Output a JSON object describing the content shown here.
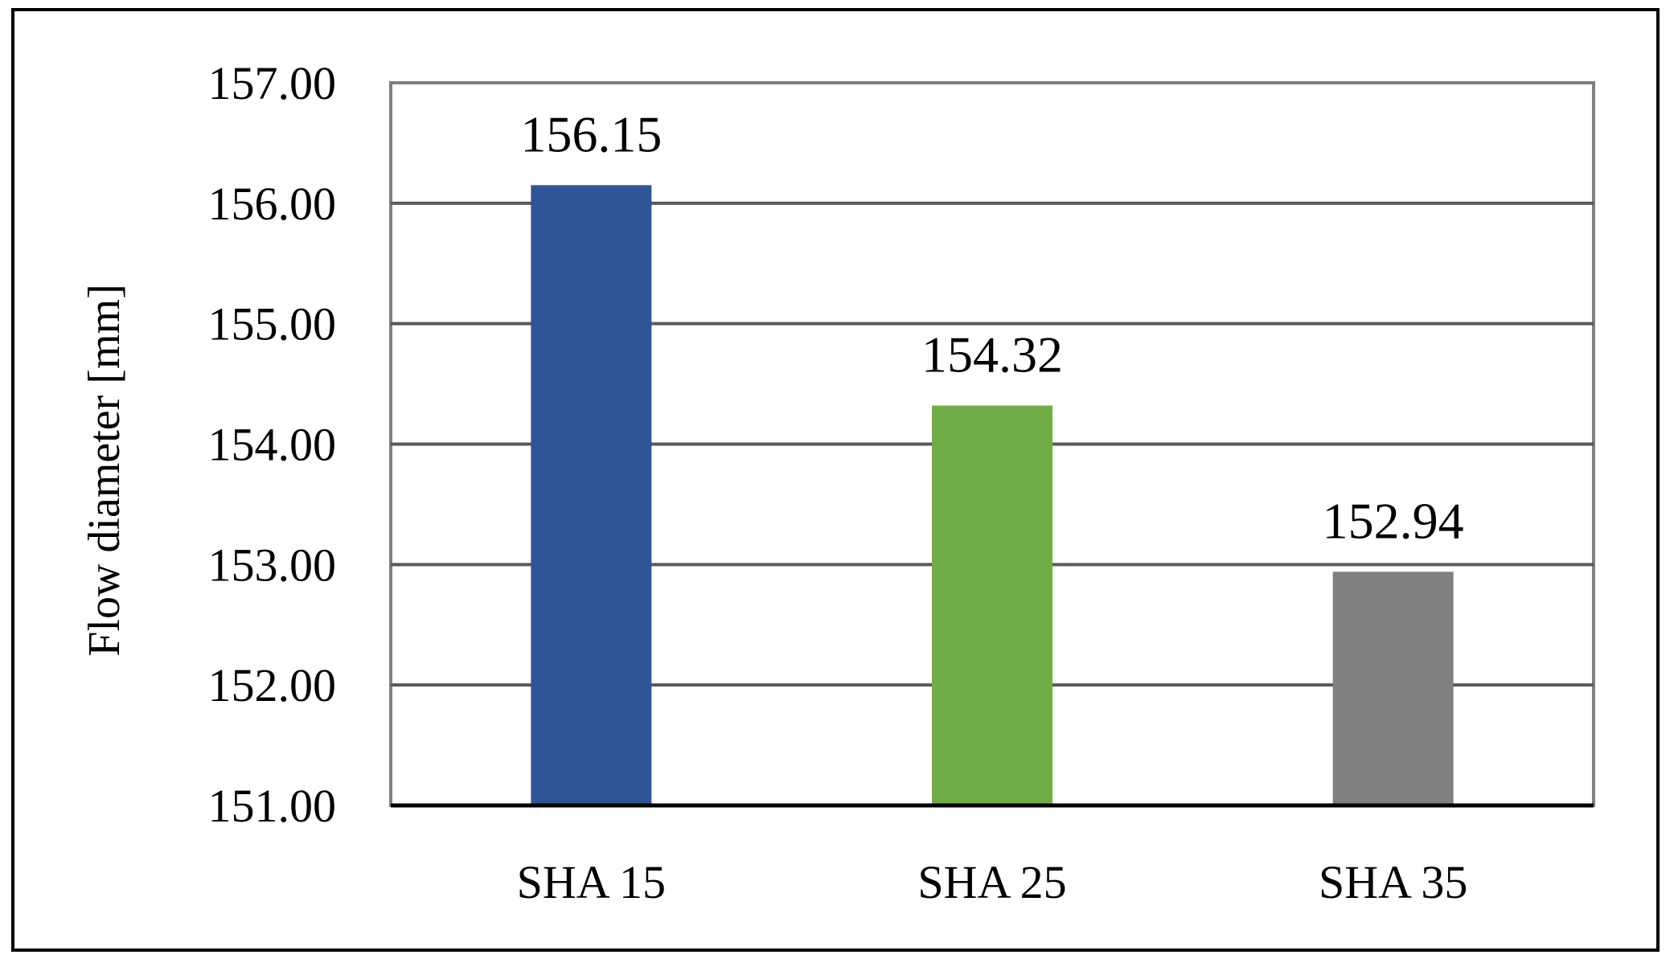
{
  "chart_data": {
    "type": "bar",
    "title": "",
    "xlabel": "",
    "ylabel": "Flow diameter [mm]",
    "categories": [
      "SHA 15",
      "SHA 25",
      "SHA 35"
    ],
    "values": [
      156.15,
      154.32,
      152.94
    ],
    "data_labels": [
      "156.15",
      "154.32",
      "152.94"
    ],
    "colors": [
      "#2f5597",
      "#70ad47",
      "#808080"
    ],
    "ylim": [
      151,
      157
    ],
    "yticks": [
      151,
      152,
      153,
      154,
      155,
      156,
      157
    ],
    "ytick_labels": [
      "151.00",
      "152.00",
      "153.00",
      "154.00",
      "155.00",
      "156.00",
      "157.00"
    ],
    "grid": true,
    "grid_color": "#595959",
    "plot_border_color": "#808080",
    "legend": "none"
  }
}
